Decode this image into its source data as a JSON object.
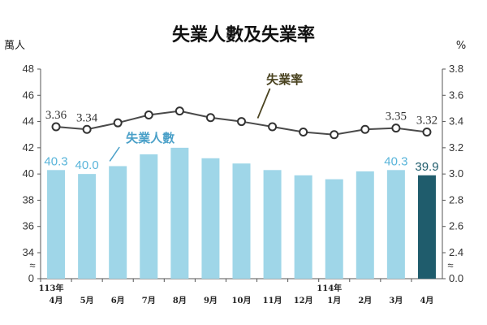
{
  "chart_data": {
    "type": "bar",
    "title": "失業人數及失業率",
    "y_left_unit": "萬人",
    "y_right_unit": "%",
    "categories": [
      "4月",
      "5月",
      "6月",
      "7月",
      "8月",
      "9月",
      "10月",
      "11月",
      "12月",
      "1月",
      "2月",
      "3月",
      "4月"
    ],
    "year_labels": [
      {
        "index": 0,
        "label": "113年"
      },
      {
        "index": 9,
        "label": "114年"
      }
    ],
    "y_left_ticks": [
      "0",
      "34",
      "36",
      "38",
      "40",
      "42",
      "44",
      "46",
      "48"
    ],
    "y_right_ticks": [
      "0.0",
      "2.4",
      "2.6",
      "2.8",
      "3.0",
      "3.2",
      "3.4",
      "3.6",
      "3.8"
    ],
    "y_left_range": [
      34,
      48
    ],
    "y_right_range": [
      2.4,
      3.8
    ],
    "axis_break": "≈",
    "series": [
      {
        "name": "失業人數",
        "kind": "bar",
        "axis": "left",
        "values": [
          40.3,
          40.0,
          40.6,
          41.5,
          42.0,
          41.2,
          40.8,
          40.3,
          39.9,
          39.6,
          40.2,
          40.3,
          39.9
        ],
        "labels": [
          {
            "index": 0,
            "text": "40.3"
          },
          {
            "index": 1,
            "text": "40.0"
          },
          {
            "index": 11,
            "text": "40.3"
          },
          {
            "index": 12,
            "text": "39.9"
          }
        ]
      },
      {
        "name": "失業率",
        "kind": "line",
        "axis": "right",
        "values": [
          3.36,
          3.34,
          3.39,
          3.45,
          3.48,
          3.43,
          3.4,
          3.36,
          3.32,
          3.3,
          3.34,
          3.35,
          3.32
        ],
        "labels": [
          {
            "index": 0,
            "text": "3.36"
          },
          {
            "index": 1,
            "text": "3.34"
          },
          {
            "index": 11,
            "text": "3.35"
          },
          {
            "index": 12,
            "text": "3.32"
          }
        ]
      }
    ],
    "colors": {
      "bar": "#9fd6e8",
      "bar_highlight": "#1f5c6c",
      "line": "#4a4a4a",
      "bar_label": "#5ab5da",
      "line_series_label": "#4a4320"
    }
  }
}
